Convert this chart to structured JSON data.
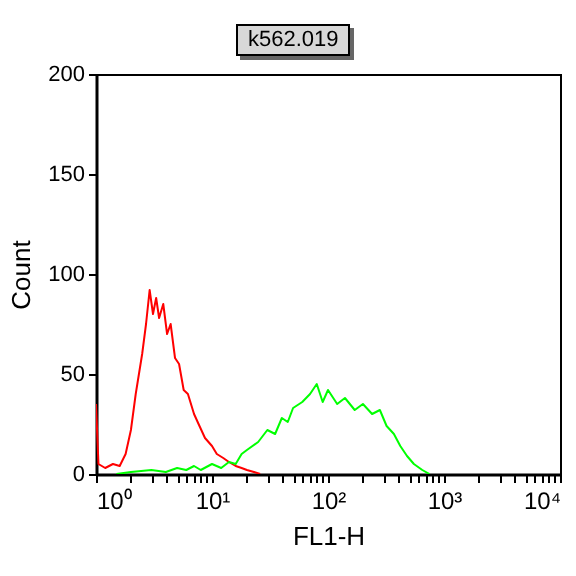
{
  "chart_data": {
    "type": "line",
    "title": "k562.019",
    "xlabel": "FL1-H",
    "ylabel": "Count",
    "log": "x",
    "xlim": [
      1,
      10000
    ],
    "ylim": [
      0,
      200
    ],
    "yticks": [
      0,
      50,
      100,
      150,
      200
    ],
    "xticks": [
      {
        "value": 1,
        "label": "10⁰"
      },
      {
        "value": 2,
        "label": null
      },
      {
        "value": 3,
        "label": null
      },
      {
        "value": 4,
        "label": null
      },
      {
        "value": 5,
        "label": null
      },
      {
        "value": 6,
        "label": null
      },
      {
        "value": 7,
        "label": null
      },
      {
        "value": 8,
        "label": null
      },
      {
        "value": 9,
        "label": null
      },
      {
        "value": 10,
        "label": "10¹"
      },
      {
        "value": 20,
        "label": null
      },
      {
        "value": 30,
        "label": null
      },
      {
        "value": 40,
        "label": null
      },
      {
        "value": 50,
        "label": null
      },
      {
        "value": 60,
        "label": null
      },
      {
        "value": 70,
        "label": null
      },
      {
        "value": 80,
        "label": null
      },
      {
        "value": 90,
        "label": null
      },
      {
        "value": 100,
        "label": "10²"
      },
      {
        "value": 200,
        "label": null
      },
      {
        "value": 300,
        "label": null
      },
      {
        "value": 400,
        "label": null
      },
      {
        "value": 500,
        "label": null
      },
      {
        "value": 600,
        "label": null
      },
      {
        "value": 700,
        "label": null
      },
      {
        "value": 800,
        "label": null
      },
      {
        "value": 900,
        "label": null
      },
      {
        "value": 1000,
        "label": "10³"
      },
      {
        "value": 2000,
        "label": null
      },
      {
        "value": 3000,
        "label": null
      },
      {
        "value": 4000,
        "label": null
      },
      {
        "value": 5000,
        "label": null
      },
      {
        "value": 6000,
        "label": null
      },
      {
        "value": 7000,
        "label": null
      },
      {
        "value": 8000,
        "label": null
      },
      {
        "value": 9000,
        "label": null
      },
      {
        "value": 10000,
        "label": "10⁴"
      }
    ],
    "series": [
      {
        "color": "#ff0000",
        "x": [
          1,
          1.05,
          1.2,
          1.4,
          1.6,
          1.8,
          2.0,
          2.2,
          2.5,
          2.7,
          2.9,
          3.1,
          3.3,
          3.5,
          3.8,
          4.1,
          4.4,
          4.8,
          5.2,
          5.7,
          6.2,
          7,
          7.8,
          8.7,
          10,
          11,
          12.5,
          14,
          16,
          18,
          20,
          23,
          26
        ],
        "values": [
          35,
          5,
          3,
          5,
          4,
          10,
          22,
          40,
          60,
          75,
          92,
          80,
          88,
          78,
          85,
          70,
          75,
          58,
          55,
          42,
          40,
          30,
          24,
          18,
          14,
          10,
          8,
          6,
          4,
          3,
          2,
          1,
          0
        ]
      },
      {
        "color": "#00ff00",
        "x": [
          1.5,
          2,
          3,
          4,
          5,
          6,
          7,
          8,
          10,
          12,
          14,
          16,
          18,
          20,
          25,
          30,
          35,
          40,
          45,
          50,
          60,
          70,
          80,
          90,
          100,
          120,
          140,
          170,
          200,
          240,
          280,
          320,
          370,
          420,
          480,
          550,
          650,
          750
        ],
        "values": [
          0,
          1,
          2,
          1,
          3,
          2,
          4,
          2,
          5,
          3,
          6,
          5,
          10,
          12,
          16,
          22,
          20,
          28,
          26,
          33,
          36,
          40,
          45,
          36,
          42,
          35,
          38,
          32,
          35,
          30,
          32,
          24,
          20,
          14,
          9,
          5,
          2,
          0
        ]
      }
    ]
  }
}
